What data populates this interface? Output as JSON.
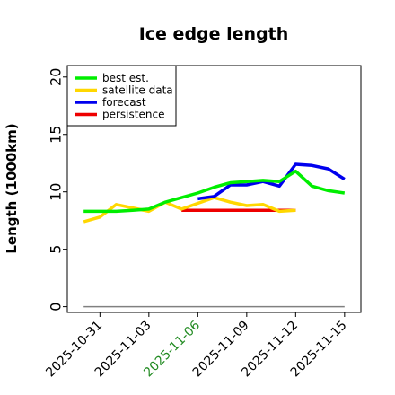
{
  "chart_data": {
    "type": "line",
    "title": "Ice edge length",
    "xlabel": "",
    "ylabel": "Length (1000km)",
    "xlim": [
      "2025-10-29",
      "2025-11-16"
    ],
    "ylim": [
      -0.5,
      21
    ],
    "yticks": [
      0,
      5,
      10,
      15,
      20
    ],
    "xticks": [
      {
        "date": "2025-10-31",
        "label": "2025-10-31",
        "color": "#000000"
      },
      {
        "date": "2025-11-03",
        "label": "2025-11-03",
        "color": "#000000"
      },
      {
        "date": "2025-11-06",
        "label": "2025-11-06",
        "color": "#228B22"
      },
      {
        "date": "2025-11-09",
        "label": "2025-11-09",
        "color": "#000000"
      },
      {
        "date": "2025-11-12",
        "label": "2025-11-12",
        "color": "#000000"
      },
      {
        "date": "2025-11-15",
        "label": "2025-11-15",
        "color": "#000000"
      }
    ],
    "grid": false,
    "legend_position": "top-left",
    "series": [
      {
        "name": "best est.",
        "color": "#00ee00",
        "x": [
          "2025-10-30",
          "2025-10-31",
          "2025-11-01",
          "2025-11-02",
          "2025-11-03",
          "2025-11-04",
          "2025-11-05",
          "2025-11-06",
          "2025-11-07",
          "2025-11-08",
          "2025-11-09",
          "2025-11-10",
          "2025-11-11",
          "2025-11-12",
          "2025-11-13",
          "2025-11-14",
          "2025-11-15"
        ],
        "y": [
          8.3,
          8.3,
          8.3,
          8.4,
          8.5,
          9.1,
          9.5,
          9.9,
          10.4,
          10.8,
          10.9,
          11.0,
          10.9,
          11.8,
          10.5,
          10.1,
          9.9
        ]
      },
      {
        "name": "satellite data",
        "color": "#ffd700",
        "x": [
          "2025-10-30",
          "2025-10-31",
          "2025-11-01",
          "2025-11-02",
          "2025-11-03",
          "2025-11-04",
          "2025-11-05",
          "2025-11-06",
          "2025-11-07",
          "2025-11-08",
          "2025-11-09",
          "2025-11-10",
          "2025-11-11",
          "2025-11-12"
        ],
        "y": [
          7.4,
          7.8,
          8.9,
          8.6,
          8.3,
          9.1,
          8.5,
          9.0,
          9.5,
          9.1,
          8.8,
          8.9,
          8.3,
          8.4
        ]
      },
      {
        "name": "forecast",
        "color": "#0000ee",
        "x": [
          "2025-11-06",
          "2025-11-07",
          "2025-11-08",
          "2025-11-09",
          "2025-11-10",
          "2025-11-11",
          "2025-11-12",
          "2025-11-13",
          "2025-11-14",
          "2025-11-15"
        ],
        "y": [
          9.4,
          9.6,
          10.6,
          10.6,
          10.9,
          10.5,
          12.4,
          12.3,
          12.0,
          11.1
        ]
      },
      {
        "name": "persistence",
        "color": "#ee0000",
        "x": [
          "2025-11-05",
          "2025-11-12"
        ],
        "y": [
          8.4,
          8.4
        ]
      },
      {
        "name": "",
        "color": "#808080",
        "x": [
          "2025-10-30",
          "2025-11-15"
        ],
        "y": [
          0,
          0
        ]
      }
    ]
  }
}
